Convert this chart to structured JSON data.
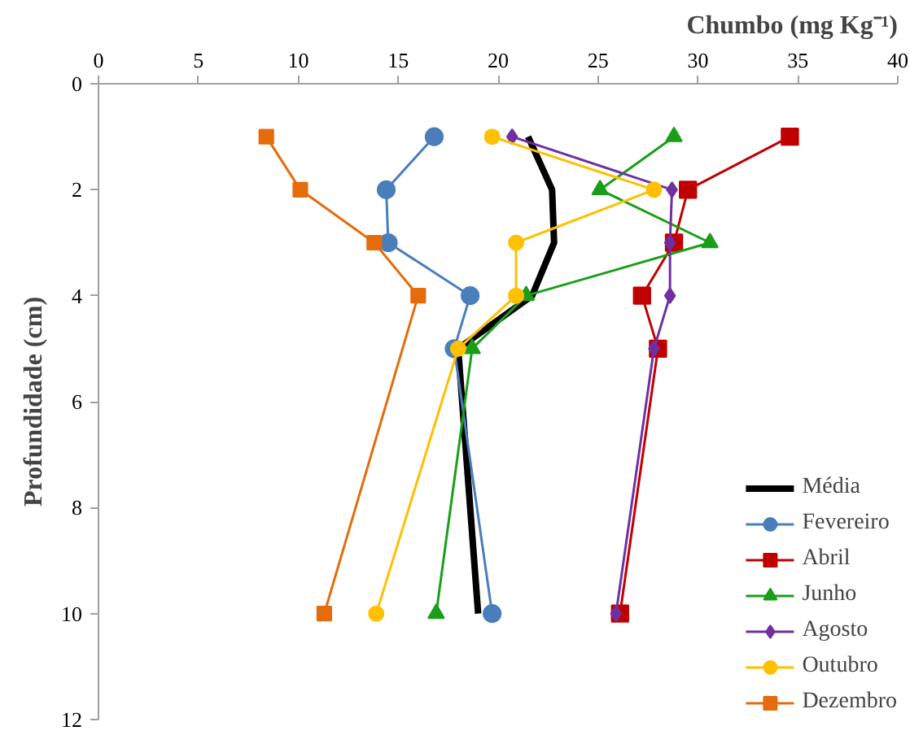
{
  "chart_data": {
    "type": "line",
    "xlabel": "Chumbo (mg Kg⁻¹)",
    "ylabel": "Profundidade (cm)",
    "xlim": [
      0,
      40
    ],
    "xticks": [
      0,
      5,
      10,
      15,
      20,
      25,
      30,
      35,
      40
    ],
    "ylim": [
      12,
      0
    ],
    "yticks": [
      0,
      2,
      4,
      6,
      8,
      10,
      12
    ],
    "grid": false,
    "legend": "bottom right",
    "series": [
      {
        "name": "Média",
        "color": "#000000",
        "marker": "none",
        "x": [
          21.5,
          22.7,
          22.8,
          21.7,
          18.0,
          19.0
        ],
        "values": [
          1,
          2,
          3,
          4,
          5,
          10
        ]
      },
      {
        "name": "Fevereiro",
        "color": "#4a7ebb",
        "marker": "circle",
        "x": [
          16.8,
          14.4,
          14.5,
          18.6,
          17.8,
          19.7
        ],
        "values": [
          1,
          2,
          3,
          4,
          5,
          10
        ]
      },
      {
        "name": "Abril",
        "color": "#c00000",
        "marker": "square",
        "x": [
          34.6,
          29.5,
          28.8,
          27.2,
          28.0,
          26.1
        ],
        "values": [
          1,
          2,
          3,
          4,
          5,
          10
        ]
      },
      {
        "name": "Junho",
        "color": "#1a9e1a",
        "marker": "triangle",
        "x": [
          28.8,
          25.1,
          30.6,
          21.4,
          18.7,
          16.9
        ],
        "values": [
          1,
          2,
          3,
          4,
          5,
          10
        ]
      },
      {
        "name": "Agosto",
        "color": "#7030a0",
        "marker": "diamond",
        "x": [
          20.7,
          28.7,
          28.6,
          28.6,
          27.8,
          25.9
        ],
        "values": [
          1,
          2,
          3,
          4,
          5,
          10
        ]
      },
      {
        "name": "Outubro",
        "color": "#ffc000",
        "marker": "circle",
        "x": [
          19.7,
          27.8,
          20.9,
          20.9,
          18.0,
          13.9
        ],
        "values": [
          1,
          2,
          3,
          4,
          5,
          10
        ]
      },
      {
        "name": "Dezembro",
        "color": "#e46c0a",
        "marker": "square",
        "x": [
          8.4,
          10.1,
          13.8,
          16.0,
          11.3
        ],
        "values": [
          1,
          2,
          3,
          4,
          10
        ]
      }
    ]
  }
}
